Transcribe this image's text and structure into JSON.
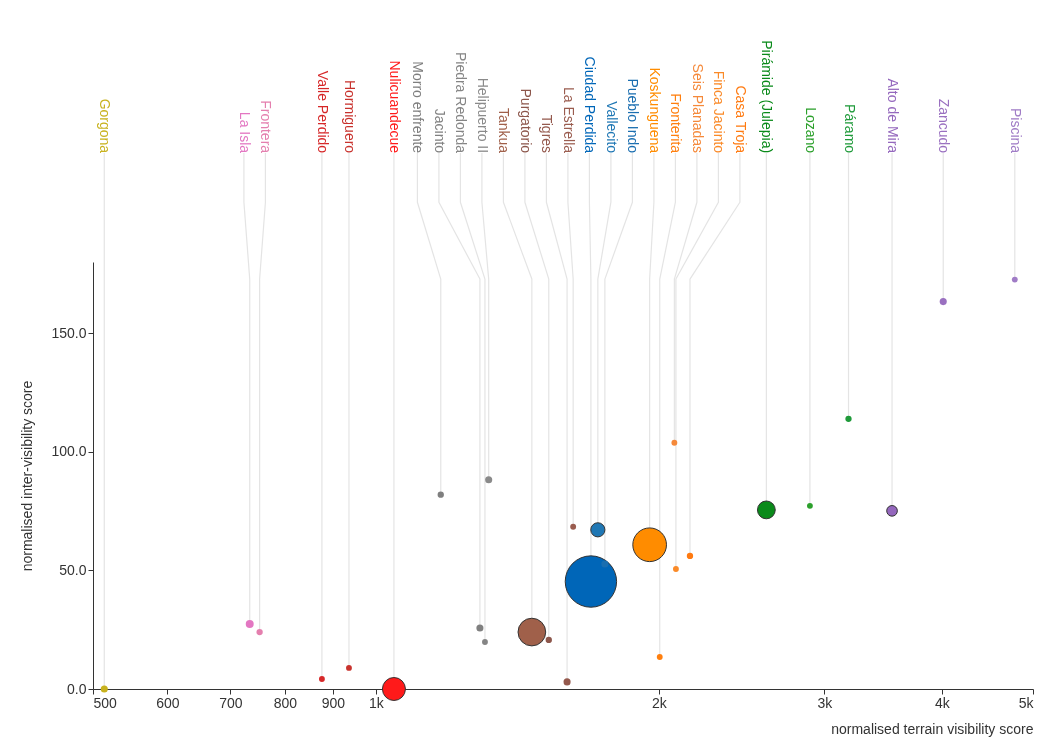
{
  "chart_data": {
    "type": "bubble",
    "xlabel": "normalised terrain visibility score",
    "ylabel": "normalised inter-visibility score",
    "log": "x",
    "marker": "circle",
    "xlim": [
      500,
      5000
    ],
    "xticks": [
      500,
      600,
      700,
      800,
      900,
      {
        "value": 1000,
        "label": "1k"
      },
      {
        "value": 2000,
        "label": "2k"
      },
      {
        "value": 3000,
        "label": "3k"
      },
      {
        "value": 4000,
        "label": "4k"
      },
      {
        "value": 5000,
        "label": "5k"
      }
    ],
    "ylim": [
      0,
      180
    ],
    "yticks": [
      {
        "value": 0,
        "label": "0.0"
      },
      {
        "value": 50,
        "label": "50.0"
      },
      {
        "value": 100,
        "label": "100.0"
      },
      {
        "value": 150,
        "label": "150.0"
      }
    ],
    "series": [
      {
        "name": "Gorgona",
        "color": "#c8b21e",
        "x": [
          514
        ],
        "values": [
          0
        ],
        "sizes": [
          0.019
        ]
      },
      {
        "name": "La Isla",
        "color": "#e377c2",
        "x": [
          734
        ],
        "values": [
          27.4
        ],
        "sizes": [
          0.024
        ]
      },
      {
        "name": "Frontera",
        "color": "#e47fae",
        "x": [
          752
        ],
        "values": [
          24
        ],
        "sizes": [
          0.015
        ]
      },
      {
        "name": "Valle Perdido",
        "color": "#d62728",
        "x": [
          876
        ],
        "values": [
          4.2
        ],
        "sizes": [
          0.013
        ]
      },
      {
        "name": "Hormiguero",
        "color": "#c8322d",
        "x": [
          936
        ],
        "values": [
          8.9
        ],
        "sizes": [
          0.013
        ]
      },
      {
        "name": "Nulicuandecue",
        "color": "#ff1a1a",
        "x": [
          1045
        ],
        "values": [
          0
        ],
        "sizes": [
          0.2
        ]
      },
      {
        "name": "Morro enfrente",
        "color": "#7f7f7f",
        "x": [
          1172
        ],
        "values": [
          81.9
        ],
        "sizes": [
          0.015
        ]
      },
      {
        "name": "Jacinto",
        "color": "#808080",
        "x": [
          1290
        ],
        "values": [
          25.7
        ],
        "sizes": [
          0.019
        ]
      },
      {
        "name": "Piedra Redonda",
        "color": "#858585",
        "x": [
          1306
        ],
        "values": [
          19.8
        ],
        "sizes": [
          0.013
        ]
      },
      {
        "name": "Helipuerto II",
        "color": "#8a8a8a",
        "x": [
          1318
        ],
        "values": [
          88.2
        ],
        "sizes": [
          0.019
        ]
      },
      {
        "name": "Tankua",
        "color": "#a0604a",
        "x": [
          1465
        ],
        "values": [
          24
        ],
        "sizes": [
          0.29
        ]
      },
      {
        "name": "Purgatorio",
        "color": "#8c564b",
        "x": [
          1527
        ],
        "values": [
          20.7
        ],
        "sizes": [
          0.015
        ]
      },
      {
        "name": "Tigres",
        "color": "#94594d",
        "x": [
          1597
        ],
        "values": [
          3
        ],
        "sizes": [
          0.019
        ]
      },
      {
        "name": "La Estrella",
        "color": "#9a5c4f",
        "x": [
          1621
        ],
        "values": [
          68.4
        ],
        "sizes": [
          0.013
        ]
      },
      {
        "name": "Ciudad Perdida",
        "color": "#0066b8",
        "x": [
          1693
        ],
        "values": [
          45.3
        ],
        "sizes": [
          1
        ]
      },
      {
        "name": "Vallecito",
        "color": "#1f77b4",
        "x": [
          1722
        ],
        "values": [
          67.1
        ],
        "sizes": [
          0.076
        ]
      },
      {
        "name": "Pueblo Indo",
        "color": "#1a6eb0",
        "x": [
          1752
        ],
        "values": [
          52.7
        ],
        "sizes": [
          0.019
        ]
      },
      {
        "name": "Koskunguena",
        "color": "#ff8c00",
        "x": [
          1955
        ],
        "values": [
          60.8
        ],
        "sizes": [
          0.43
        ]
      },
      {
        "name": "Fronterita",
        "color": "#ff7f0e",
        "x": [
          2004
        ],
        "values": [
          13.5
        ],
        "sizes": [
          0.013
        ]
      },
      {
        "name": "Seis Planadas",
        "color": "#f5893a",
        "x": [
          2077
        ],
        "values": [
          103.8
        ],
        "sizes": [
          0.013
        ]
      },
      {
        "name": "Finca Jacinto",
        "color": "#fa8a28",
        "x": [
          2085
        ],
        "values": [
          50.6
        ],
        "sizes": [
          0.013
        ]
      },
      {
        "name": "Casa Troja",
        "color": "#ff7a10",
        "x": [
          2158
        ],
        "values": [
          56.1
        ],
        "sizes": [
          0.015
        ]
      },
      {
        "name": "Pirámide (Julepia)",
        "color": "#0a8a1a",
        "x": [
          2602
        ],
        "values": [
          75.5
        ],
        "sizes": [
          0.12
        ]
      },
      {
        "name": "Lozano",
        "color": "#2ca02c",
        "x": [
          2895
        ],
        "values": [
          77.2
        ],
        "sizes": [
          0.013
        ]
      },
      {
        "name": "Páramo",
        "color": "#1f9a3a",
        "x": [
          3182
        ],
        "values": [
          113.9
        ],
        "sizes": [
          0.015
        ]
      },
      {
        "name": "Alto de Mira",
        "color": "#9467bd",
        "x": [
          3540
        ],
        "values": [
          75.1
        ],
        "sizes": [
          0.043
        ]
      },
      {
        "name": "Zancudo",
        "color": "#9a70c0",
        "x": [
          4013
        ],
        "values": [
          163.3
        ],
        "sizes": [
          0.019
        ]
      },
      {
        "name": "Piscina",
        "color": "#a07cc6",
        "x": [
          4782
        ],
        "values": [
          172.6
        ],
        "sizes": [
          0.013
        ]
      }
    ]
  }
}
